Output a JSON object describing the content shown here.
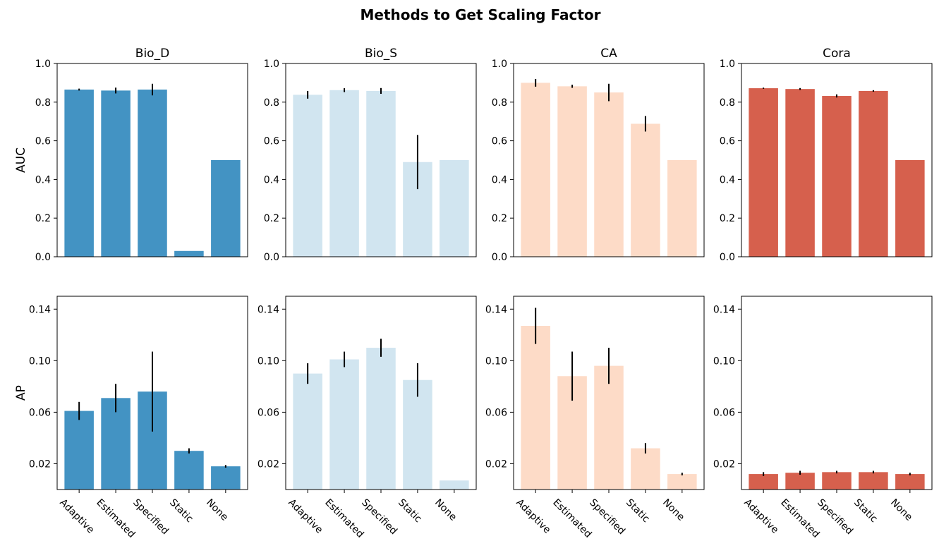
{
  "figure": {
    "title": "Methods to Get Scaling Factor"
  },
  "chart_data": [
    {
      "type": "bar",
      "panel": "Bio_D",
      "metric": "AUC",
      "title": "Bio_D",
      "ylabel": "AUC",
      "categories": [
        "Adaptive",
        "Estimated",
        "Specified",
        "Static",
        "None"
      ],
      "values": [
        0.865,
        0.86,
        0.865,
        0.03,
        0.5
      ],
      "errors": [
        0.005,
        0.015,
        0.03,
        0,
        0
      ],
      "ylim": [
        0,
        1.0
      ],
      "yticks": [
        "0.0",
        "0.2",
        "0.4",
        "0.6",
        "0.8",
        "1.0"
      ],
      "color": "#4393c3",
      "show_xticklabels": false
    },
    {
      "type": "bar",
      "panel": "Bio_S",
      "metric": "AUC",
      "title": "Bio_S",
      "ylabel": "",
      "categories": [
        "Adaptive",
        "Estimated",
        "Specified",
        "Static",
        "None"
      ],
      "values": [
        0.838,
        0.862,
        0.858,
        0.49,
        0.5
      ],
      "errors": [
        0.02,
        0.01,
        0.015,
        0.14,
        0
      ],
      "ylim": [
        0,
        1.0
      ],
      "yticks": [
        "0.0",
        "0.2",
        "0.4",
        "0.6",
        "0.8",
        "1.0"
      ],
      "color": "#d1e5f0",
      "show_xticklabels": false
    },
    {
      "type": "bar",
      "panel": "CA",
      "metric": "AUC",
      "title": "CA",
      "ylabel": "",
      "categories": [
        "Adaptive",
        "Estimated",
        "Specified",
        "Static",
        "None"
      ],
      "values": [
        0.9,
        0.882,
        0.85,
        0.688,
        0.5
      ],
      "errors": [
        0.02,
        0.008,
        0.045,
        0.04,
        0
      ],
      "ylim": [
        0,
        1.0
      ],
      "yticks": [
        "0.0",
        "0.2",
        "0.4",
        "0.6",
        "0.8",
        "1.0"
      ],
      "color": "#fddbc7",
      "show_xticklabels": false
    },
    {
      "type": "bar",
      "panel": "Cora",
      "metric": "AUC",
      "title": "Cora",
      "ylabel": "",
      "categories": [
        "Adaptive",
        "Estimated",
        "Specified",
        "Static",
        "None"
      ],
      "values": [
        0.872,
        0.868,
        0.832,
        0.858,
        0.5
      ],
      "errors": [
        0.003,
        0.005,
        0.008,
        0.004,
        0
      ],
      "ylim": [
        0,
        1.0
      ],
      "yticks": [
        "0.0",
        "0.2",
        "0.4",
        "0.6",
        "0.8",
        "1.0"
      ],
      "color": "#d6604d",
      "show_xticklabels": false
    },
    {
      "type": "bar",
      "panel": "Bio_D",
      "metric": "AP",
      "title": "",
      "ylabel": "AP",
      "categories": [
        "Adaptive",
        "Estimated",
        "Specified",
        "Static",
        "None"
      ],
      "values": [
        0.061,
        0.071,
        0.076,
        0.03,
        0.018
      ],
      "errors": [
        0.007,
        0.011,
        0.031,
        0.002,
        0.001
      ],
      "ylim": [
        0,
        0.15
      ],
      "yticks": [
        "0.02",
        "0.06",
        "0.10",
        "0.14"
      ],
      "color": "#4393c3",
      "show_xticklabels": true
    },
    {
      "type": "bar",
      "panel": "Bio_S",
      "metric": "AP",
      "title": "",
      "ylabel": "",
      "categories": [
        "Adaptive",
        "Estimated",
        "Specified",
        "Static",
        "None"
      ],
      "values": [
        0.09,
        0.101,
        0.11,
        0.085,
        0.007
      ],
      "errors": [
        0.008,
        0.006,
        0.007,
        0.013,
        0
      ],
      "ylim": [
        0,
        0.15
      ],
      "yticks": [
        "0.02",
        "0.06",
        "0.10",
        "0.14"
      ],
      "color": "#d1e5f0",
      "show_xticklabels": true
    },
    {
      "type": "bar",
      "panel": "CA",
      "metric": "AP",
      "title": "",
      "ylabel": "",
      "categories": [
        "Adaptive",
        "Estimated",
        "Specified",
        "Static",
        "None"
      ],
      "values": [
        0.127,
        0.088,
        0.096,
        0.032,
        0.012
      ],
      "errors": [
        0.014,
        0.019,
        0.014,
        0.004,
        0.001
      ],
      "ylim": [
        0,
        0.15
      ],
      "yticks": [
        "0.02",
        "0.06",
        "0.10",
        "0.14"
      ],
      "color": "#fddbc7",
      "show_xticklabels": true
    },
    {
      "type": "bar",
      "panel": "Cora",
      "metric": "AP",
      "title": "",
      "ylabel": "",
      "categories": [
        "Adaptive",
        "Estimated",
        "Specified",
        "Static",
        "None"
      ],
      "values": [
        0.012,
        0.013,
        0.0135,
        0.0135,
        0.012
      ],
      "errors": [
        0.0015,
        0.0015,
        0.001,
        0.001,
        0.001
      ],
      "ylim": [
        0,
        0.15
      ],
      "yticks": [
        "0.02",
        "0.06",
        "0.10",
        "0.14"
      ],
      "color": "#d6604d",
      "show_xticklabels": true
    }
  ]
}
